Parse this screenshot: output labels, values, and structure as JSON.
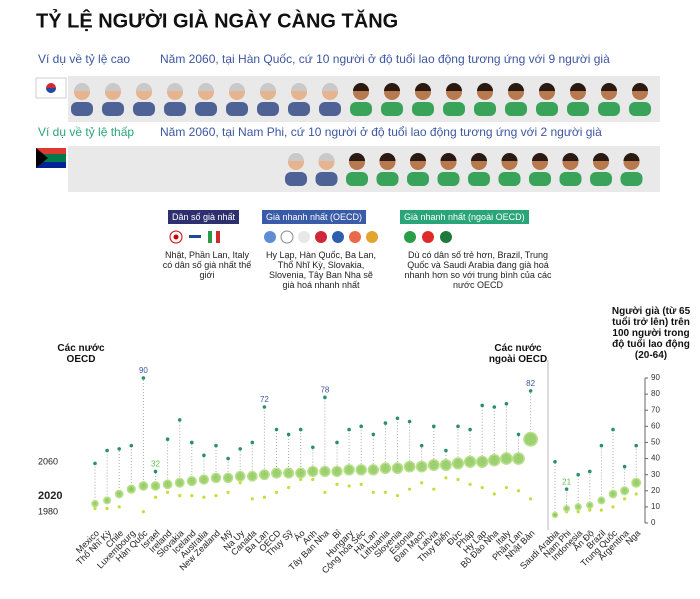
{
  "header": {
    "title": "TỶ LỆ NGƯỜI GIÀ NGÀY CÀNG TĂNG"
  },
  "examples": [
    {
      "label": "Ví dụ về tỷ lệ cao",
      "text": "Năm 2060, tại Hàn Quốc, cứ 10 người ở độ tuổi lao động tương ứng với 9 người già"
    },
    {
      "label": "Ví dụ về tỷ lệ thấp",
      "text": "Năm 2060, tại Nam Phi, cứ 10 người ở độ tuổi lao động tương ứng với 2 người già"
    }
  ],
  "legend": [
    {
      "title": "Dân số già nhất",
      "text": "Nhật, Phần Lan, Italy có dân số già nhất thế giới"
    },
    {
      "title": "Già nhanh nhất (OECD)",
      "text": "Hy Lạp, Hàn Quốc, Ba Lan, Thổ Nhĩ Kỳ, Slovakia, Slovenia, Tây Ban Nha sẽ già hoá nhanh nhất"
    },
    {
      "title": "Già nhanh nhất (ngoài OECD)",
      "text": "Dù có dân số trẻ hơn, Brazil, Trung Quốc và Saudi Arabia đang già hoá nhanh hơn so với trung bình của các nước OECD"
    }
  ],
  "chart_data": {
    "type": "dot",
    "y_axis_label": "Người già (từ 65 tuổi trở lên) trên 100 người trong độ tuổi lao động (20-64)",
    "groups": [
      {
        "name": "Các nước OECD",
        "categories": [
          "Mexico",
          "Thổ Nhĩ Kỳ",
          "Chile",
          "Luxembourg",
          "Hàn Quốc",
          "Israel",
          "Ireland",
          "Slovakia",
          "Iceland",
          "Australia",
          "New Zealand",
          "Mỹ",
          "Na Uy",
          "Canada",
          "Ba Lan",
          "OECD",
          "Thụy Sỹ",
          "Áo",
          "Anh",
          "Tây Ban Nha",
          "Bỉ",
          "Hungary",
          "Cộng hòa Séc",
          "Hà Lan",
          "Lithuania",
          "Slovenia",
          "Estonia",
          "Đan Mạch",
          "Latvia",
          "Thụy Điển",
          "Đức",
          "Pháp",
          "Hy Lạp",
          "Bồ Đào Nha",
          "Italy",
          "Phần Lan",
          "Nhật Bản"
        ]
      },
      {
        "name": "Các nước ngoài OECD",
        "categories": [
          "Saudi Arabia",
          "Nam Phi",
          "Indonesia",
          "Ấn Độ",
          "Brazil",
          "Trung Quốc",
          "Argentina",
          "Nga"
        ]
      }
    ],
    "series": [
      {
        "name": "2060",
        "color": "#2a8f6f",
        "values": [
          37,
          45,
          46,
          48,
          90,
          32,
          52,
          64,
          50,
          42,
          48,
          40,
          46,
          50,
          72,
          58,
          55,
          58,
          47,
          78,
          50,
          58,
          60,
          55,
          62,
          65,
          63,
          48,
          60,
          45,
          60,
          58,
          73,
          72,
          74,
          55,
          82,
          38,
          21,
          30,
          32,
          48,
          58,
          35,
          48
        ],
        "value_labels": [
          null,
          null,
          null,
          null,
          "90",
          "32",
          null,
          null,
          null,
          null,
          null,
          null,
          null,
          null,
          "72",
          null,
          null,
          null,
          null,
          "78",
          null,
          null,
          null,
          null,
          null,
          null,
          null,
          null,
          null,
          null,
          null,
          null,
          null,
          null,
          null,
          null,
          "82",
          null,
          "21",
          null,
          null,
          null,
          null,
          null,
          null
        ]
      },
      {
        "name": "2020",
        "color": "#7cc242",
        "values": [
          12,
          14,
          18,
          21,
          23,
          23,
          24,
          25,
          26,
          27,
          28,
          28,
          29,
          29,
          30,
          31,
          31,
          31,
          32,
          32,
          32,
          33,
          33,
          33,
          34,
          34,
          35,
          35,
          36,
          36,
          37,
          38,
          38,
          39,
          40,
          40,
          52,
          5,
          9,
          10,
          11,
          14,
          18,
          20,
          25
        ]
      },
      {
        "name": "1980",
        "color": "#c9dc3a",
        "values": [
          9,
          9,
          10,
          21,
          7,
          16,
          19,
          17,
          17,
          16,
          17,
          19,
          25,
          15,
          16,
          19,
          22,
          27,
          27,
          19,
          24,
          23,
          24,
          19,
          19,
          17,
          21,
          25,
          21,
          28,
          27,
          24,
          22,
          18,
          22,
          20,
          15,
          5,
          7,
          7,
          8,
          8,
          10,
          15,
          18
        ]
      }
    ],
    "ylim": [
      0,
      90
    ],
    "yticks": [
      0,
      10,
      20,
      30,
      40,
      50,
      60,
      70,
      80,
      90
    ]
  }
}
